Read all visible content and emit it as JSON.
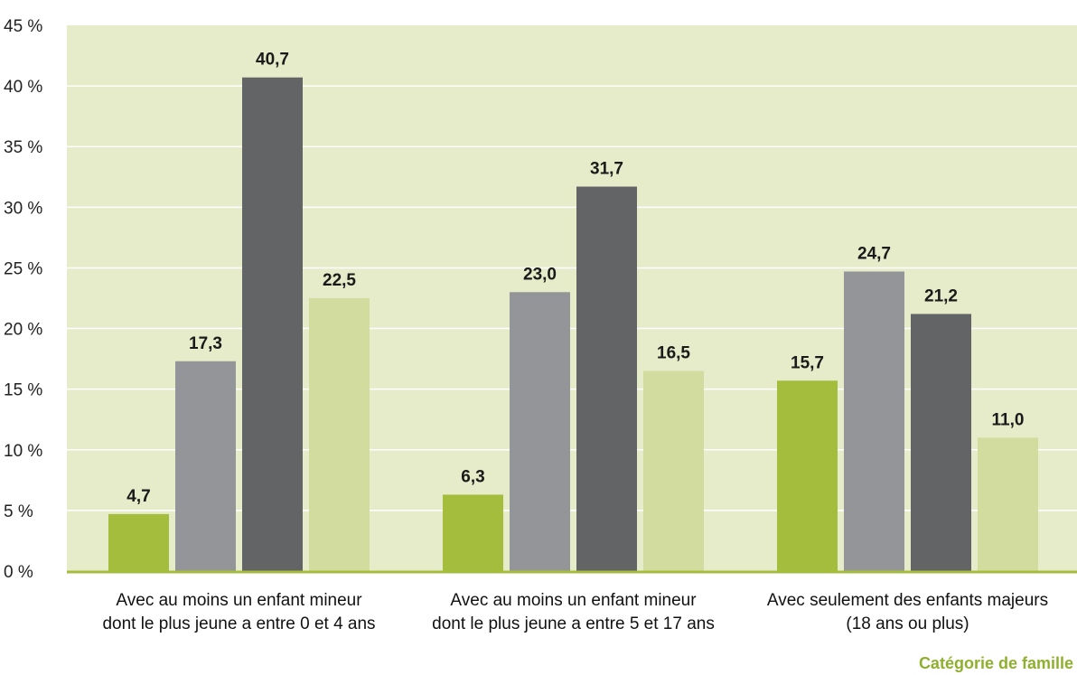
{
  "chart_data": {
    "type": "bar",
    "xlabel": "Catégorie de famille",
    "ylabel": "",
    "ylim": [
      0,
      45
    ],
    "yticks": [
      0,
      5,
      10,
      15,
      20,
      25,
      30,
      35,
      40,
      45
    ],
    "ytick_labels": [
      "0 %",
      "5 %",
      "10 %",
      "15 %",
      "20 %",
      "25 %",
      "30 %",
      "35 %",
      "40 %",
      "45 %"
    ],
    "grid": true,
    "categories": [
      [
        "Avec au moins un enfant mineur",
        "dont le plus jeune a entre 0 et 4 ans"
      ],
      [
        "Avec au moins un enfant mineur",
        "dont le plus jeune a entre 5 et 17 ans"
      ],
      [
        "Avec seulement des enfants majeurs",
        "(18 ans ou plus)"
      ]
    ],
    "series": [
      {
        "values": [
          4.7,
          6.3,
          15.7
        ],
        "labels": [
          "4,7",
          "6,3",
          "15,7"
        ],
        "color": "#a5bd3d"
      },
      {
        "values": [
          17.3,
          23.0,
          24.7
        ],
        "labels": [
          "17,3",
          "23,0",
          "24,7"
        ],
        "color": "#939598"
      },
      {
        "values": [
          40.7,
          31.7,
          21.2
        ],
        "labels": [
          "40,7",
          "31,7",
          "21,2"
        ],
        "color": "#636466"
      },
      {
        "values": [
          22.5,
          16.5,
          11.0
        ],
        "labels": [
          "22,5",
          "16,5",
          "11,0"
        ],
        "color": "#d1dc9e"
      }
    ],
    "colors": {
      "plot_background": "#e6ebc9",
      "gridline": "#ffffff",
      "baseline": "#a5bd3d",
      "xlabel": "#8fb02e"
    }
  }
}
